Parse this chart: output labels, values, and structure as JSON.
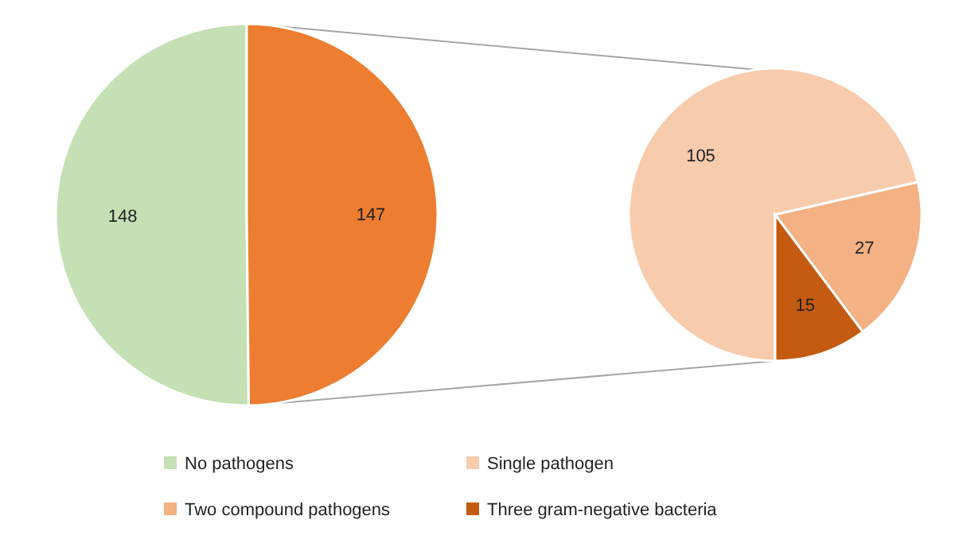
{
  "chart_data": [
    {
      "type": "pie",
      "categories": [
        "No pathogens",
        null
      ],
      "values": [
        148,
        147
      ],
      "colors": [
        "#c5e0b4",
        "#ed7d31"
      ],
      "data_labels": true,
      "legend": "bottom"
    },
    {
      "type": "pie",
      "categories": [
        "Single pathogen",
        "Two compound pathogens",
        "Three gram-negative bacteria"
      ],
      "values": [
        105,
        27,
        15
      ],
      "colors": [
        "#f8cbad",
        "#f4b183",
        "#c55a11"
      ],
      "data_labels": true,
      "legend": "bottom"
    }
  ]
}
